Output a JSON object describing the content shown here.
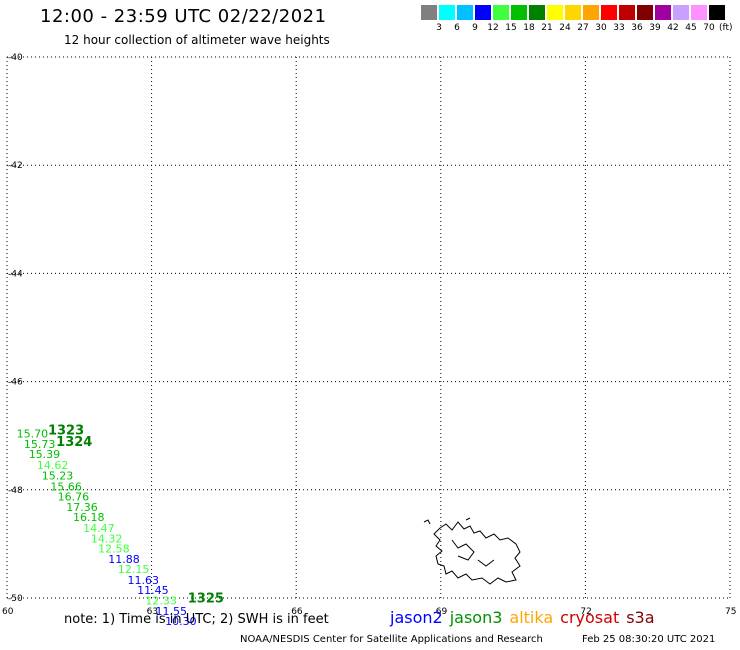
{
  "header": {
    "title": "12:00 - 23:59 UTC 02/22/2021",
    "subtitle": "12 hour collection of altimeter wave heights"
  },
  "color_scale": {
    "unit": "(ft)",
    "labels": [
      "3",
      "6",
      "9",
      "12",
      "15",
      "18",
      "21",
      "24",
      "27",
      "30",
      "33",
      "36",
      "39",
      "42",
      "45",
      "70"
    ],
    "colors": [
      "#808080",
      "#00ffff",
      "#00c0ff",
      "#0000ff",
      "#40ff40",
      "#00c000",
      "#008000",
      "#ffff00",
      "#ffd700",
      "#ffa500",
      "#ff0000",
      "#c00000",
      "#800000",
      "#a000a0",
      "#c8a0ff",
      "#ff90ff",
      "#000000"
    ]
  },
  "chart_data": {
    "type": "scatter",
    "title": "12:00 - 23:59 UTC 02/22/2021",
    "subtitle": "12 hour collection of altimeter wave heights",
    "xlim": [
      60,
      75
    ],
    "ylim": [
      -50,
      -40
    ],
    "x_ticks": [
      "60",
      "63",
      "66",
      "69",
      "72",
      "75"
    ],
    "y_ticks": [
      "-40",
      "-42",
      "-44",
      "-46",
      "-48",
      "-50"
    ],
    "grid": true,
    "points": [
      {
        "x": 60.2,
        "y": -47.03,
        "label": "15.70",
        "color": "#00c000"
      },
      {
        "x": 60.35,
        "y": -47.23,
        "label": "15.73",
        "color": "#00c000"
      },
      {
        "x": 60.45,
        "y": -47.41,
        "label": "15.39",
        "color": "#00c000"
      },
      {
        "x": 60.62,
        "y": -47.62,
        "label": "14.62",
        "color": "#40ff40"
      },
      {
        "x": 60.72,
        "y": -47.81,
        "label": "15.23",
        "color": "#00c000"
      },
      {
        "x": 60.9,
        "y": -48.01,
        "label": "15.66",
        "color": "#00c000"
      },
      {
        "x": 61.05,
        "y": -48.2,
        "label": "16.76",
        "color": "#00c000"
      },
      {
        "x": 61.23,
        "y": -48.39,
        "label": "17.36",
        "color": "#00c000"
      },
      {
        "x": 61.37,
        "y": -48.58,
        "label": "16.18",
        "color": "#00c000"
      },
      {
        "x": 61.58,
        "y": -48.78,
        "label": "14.47",
        "color": "#40ff40"
      },
      {
        "x": 61.74,
        "y": -48.97,
        "label": "14.32",
        "color": "#40ff40"
      },
      {
        "x": 61.89,
        "y": -49.16,
        "label": "12.58",
        "color": "#40ff40"
      },
      {
        "x": 62.1,
        "y": -49.35,
        "label": "11.88",
        "color": "#0000ff"
      },
      {
        "x": 62.3,
        "y": -49.54,
        "label": "12.15",
        "color": "#40ff40"
      },
      {
        "x": 62.5,
        "y": -49.74,
        "label": "11.63",
        "color": "#0000ff"
      },
      {
        "x": 62.7,
        "y": -49.93,
        "label": "11.45",
        "color": "#0000ff"
      },
      {
        "x": 62.87,
        "y": -50.12,
        "label": "12.33",
        "color": "#40ff40"
      },
      {
        "x": 63.08,
        "y": -50.31,
        "label": "11.55",
        "color": "#0000ff"
      },
      {
        "x": 63.28,
        "y": -50.5,
        "label": "10.30",
        "color": "#0000ff"
      }
    ],
    "pass_labels": [
      {
        "x": 60.85,
        "y": -46.98,
        "label": "1323",
        "color": "#008000"
      },
      {
        "x": 61.02,
        "y": -47.19,
        "label": "1324",
        "color": "#008000"
      },
      {
        "x": 63.75,
        "y": -50.08,
        "label": "1325",
        "color": "#008000"
      }
    ]
  },
  "note": "note: 1) Time is in UTC; 2) SWH is in feet",
  "satellites": [
    {
      "name": "jason2",
      "color": "#0000ff"
    },
    {
      "name": "jason3",
      "color": "#009000"
    },
    {
      "name": "altika",
      "color": "#ffa500"
    },
    {
      "name": "cryosat",
      "color": "#d00000"
    },
    {
      "name": "s3a",
      "color": "#800000"
    }
  ],
  "footer": {
    "credit": "NOAA/NESDIS Center for Satellite Applications and Research",
    "timestamp": "Feb 25 08:30:20 UTC 2021"
  }
}
